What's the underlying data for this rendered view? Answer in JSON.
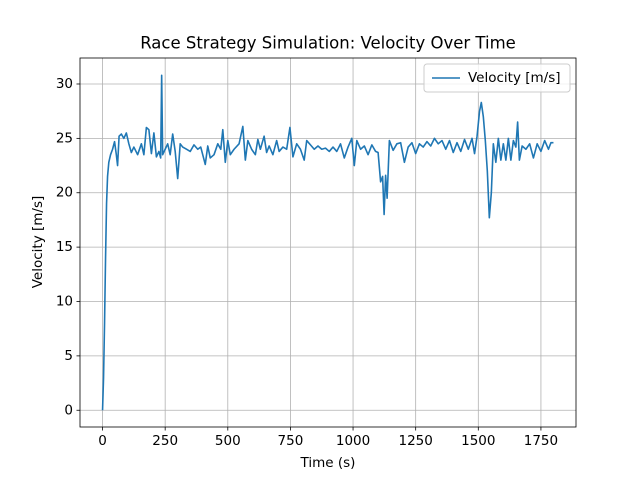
{
  "chart_data": {
    "type": "line",
    "title": "Race Strategy Simulation: Velocity Over Time",
    "xlabel": "Time (s)",
    "ylabel": "Velocity [m/s]",
    "x": [
      0,
      4,
      8,
      12,
      16,
      20,
      25,
      32,
      40,
      48,
      55,
      60,
      66,
      75,
      85,
      95,
      105,
      115,
      125,
      140,
      155,
      165,
      175,
      185,
      195,
      205,
      215,
      225,
      232,
      236,
      240,
      250,
      260,
      270,
      280,
      290,
      300,
      310,
      320,
      335,
      350,
      365,
      380,
      392,
      410,
      420,
      430,
      445,
      460,
      472,
      480,
      490,
      500,
      510,
      525,
      545,
      560,
      570,
      580,
      595,
      610,
      620,
      630,
      645,
      655,
      665,
      680,
      695,
      705,
      720,
      735,
      748,
      760,
      775,
      790,
      805,
      815,
      830,
      845,
      860,
      875,
      890,
      905,
      920,
      935,
      950,
      965,
      980,
      995,
      1005,
      1015,
      1030,
      1045,
      1060,
      1075,
      1090,
      1100,
      1110,
      1118,
      1124,
      1130,
      1136,
      1145,
      1160,
      1175,
      1190,
      1205,
      1220,
      1235,
      1250,
      1265,
      1280,
      1295,
      1310,
      1325,
      1340,
      1355,
      1370,
      1385,
      1400,
      1415,
      1430,
      1445,
      1460,
      1475,
      1485,
      1495,
      1505,
      1512,
      1520,
      1528,
      1536,
      1544,
      1552,
      1560,
      1570,
      1580,
      1590,
      1600,
      1610,
      1620,
      1630,
      1640,
      1650,
      1657,
      1664,
      1675,
      1690,
      1705,
      1720,
      1735,
      1750,
      1765,
      1780,
      1790,
      1800
    ],
    "series": [
      {
        "name": "Velocity [m/s]",
        "color": "#1f77b4",
        "values": [
          0,
          3,
          8,
          14,
          19,
          21.5,
          22.8,
          23.5,
          24,
          24.7,
          23.5,
          22.5,
          25.2,
          25.4,
          25,
          25.5,
          24.5,
          23.7,
          24.2,
          23.5,
          24.5,
          23.5,
          26,
          25.8,
          23.6,
          25.5,
          23.3,
          23.8,
          23.2,
          30.8,
          23.5,
          24,
          24.5,
          23.5,
          25.4,
          23.8,
          21.3,
          24.5,
          24.2,
          24,
          23.8,
          24.4,
          24,
          24.2,
          22.6,
          24.3,
          23.2,
          23.5,
          24.5,
          24,
          25.8,
          22.8,
          24.8,
          23.5,
          24,
          24.5,
          26.1,
          23,
          24.8,
          24,
          23.5,
          24.9,
          24,
          25.2,
          23.7,
          24.3,
          23.5,
          24.8,
          23.8,
          24.2,
          24,
          26,
          23.3,
          24.5,
          24,
          23,
          24.8,
          24.4,
          24,
          24.3,
          24,
          24.1,
          23.8,
          24.2,
          23.8,
          24.5,
          23.2,
          24.2,
          25,
          22.5,
          24.8,
          24,
          24.3,
          23.5,
          24.4,
          23.8,
          23.7,
          21,
          21.5,
          18,
          21.6,
          19.5,
          24.8,
          23.9,
          24.5,
          24.6,
          22.8,
          24.2,
          24.6,
          23.6,
          24.5,
          24.2,
          24.7,
          24.3,
          25,
          24.5,
          24.8,
          24,
          24.8,
          23.7,
          24.6,
          23.8,
          24.9,
          24,
          25,
          23.6,
          25.2,
          27.5,
          28.3,
          27,
          24.8,
          22,
          17.7,
          20,
          24.5,
          22.8,
          25,
          23,
          24.5,
          23,
          25,
          23,
          24.8,
          24.2,
          26.5,
          23,
          24.3,
          24,
          24.5,
          23.2,
          24.5,
          23.8,
          24.8,
          24,
          24.6,
          24.6
        ]
      }
    ],
    "xlim": [
      -90,
      1890
    ],
    "ylim": [
      -1.54,
      32.39
    ],
    "xticks": [
      0,
      250,
      500,
      750,
      1000,
      1250,
      1500,
      1750
    ],
    "yticks": [
      0,
      5,
      10,
      15,
      20,
      25,
      30
    ],
    "grid": true,
    "legend": "upper right"
  }
}
